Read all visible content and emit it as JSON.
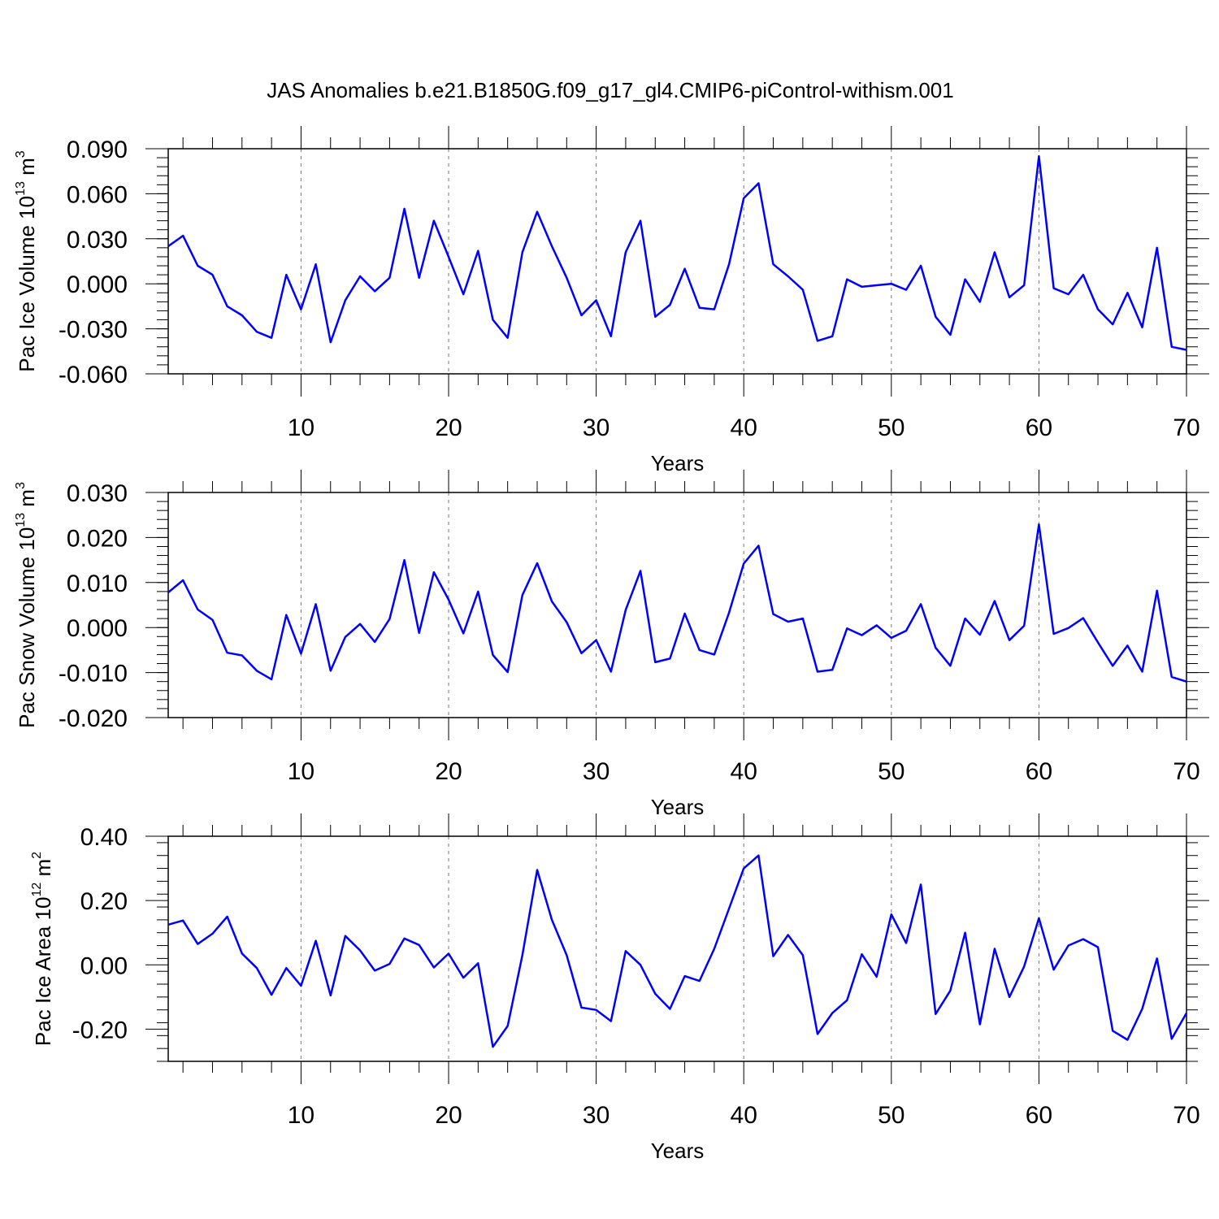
{
  "title": "JAS Anomalies b.e21.B1850G.f09_g17_gl4.CMIP6-piControl-withism.001",
  "line_color": "#0000ff",
  "chart_data": [
    {
      "type": "line",
      "ylabel": "Pac Ice Volume 10",
      "ylabel_exp": "13",
      "ylabel_unit": " m",
      "ylabel_unit_exp": "3",
      "xlabel": "Years",
      "xlim": [
        1,
        70
      ],
      "ylim": [
        -0.06,
        0.09
      ],
      "xticks": [
        10,
        20,
        30,
        40,
        50,
        60,
        70
      ],
      "xtick_labels": [
        "10",
        "20",
        "30",
        "40",
        "50",
        "60",
        "70"
      ],
      "yticks": [
        -0.06,
        -0.03,
        0.0,
        0.03,
        0.06,
        0.09
      ],
      "ytick_labels": [
        "-0.060",
        "-0.030",
        "0.000",
        "0.030",
        "0.060",
        "0.090"
      ],
      "grid": "vertical dashed at major x ticks",
      "series": [
        {
          "x": [
            1,
            2,
            3,
            4,
            5,
            6,
            7,
            8,
            9,
            10,
            11,
            12,
            13,
            14,
            15,
            16,
            17,
            18,
            19,
            20,
            21,
            22,
            23,
            24,
            25,
            26,
            27,
            28,
            29,
            30,
            31,
            32,
            33,
            34,
            35,
            36,
            37,
            38,
            39,
            40,
            41,
            42,
            43,
            44,
            45,
            46,
            47,
            48,
            49,
            50,
            51,
            52,
            53,
            54,
            55,
            56,
            57,
            58,
            59,
            60,
            61,
            62,
            63,
            64,
            65,
            66,
            67,
            68,
            69,
            70
          ],
          "y": [
            0.025,
            0.032,
            0.012,
            0.006,
            -0.015,
            -0.021,
            -0.032,
            -0.036,
            0.006,
            -0.017,
            0.013,
            -0.039,
            -0.011,
            0.005,
            -0.005,
            0.004,
            0.05,
            0.004,
            0.042,
            0.018,
            -0.007,
            0.022,
            -0.024,
            -0.036,
            0.021,
            0.048,
            0.025,
            0.004,
            -0.021,
            -0.011,
            -0.035,
            0.021,
            0.042,
            -0.022,
            -0.014,
            0.01,
            -0.016,
            -0.017,
            0.013,
            0.057,
            0.067,
            0.013,
            0.005,
            -0.004,
            -0.038,
            -0.035,
            0.003,
            -0.002,
            -0.001,
            0.0,
            -0.004,
            0.012,
            -0.022,
            -0.034,
            0.003,
            -0.012,
            0.021,
            -0.009,
            -0.001,
            0.085,
            -0.003,
            -0.007,
            0.006,
            -0.017,
            -0.027,
            -0.006,
            -0.029,
            0.024,
            -0.042,
            -0.044
          ]
        }
      ]
    },
    {
      "type": "line",
      "ylabel": "Pac Snow Volume 10",
      "ylabel_exp": "13",
      "ylabel_unit": " m",
      "ylabel_unit_exp": "3",
      "xlabel": "Years",
      "xlim": [
        1,
        70
      ],
      "ylim": [
        -0.02,
        0.03
      ],
      "xticks": [
        10,
        20,
        30,
        40,
        50,
        60,
        70
      ],
      "xtick_labels": [
        "10",
        "20",
        "30",
        "40",
        "50",
        "60",
        "70"
      ],
      "yticks": [
        -0.02,
        -0.01,
        0.0,
        0.01,
        0.02,
        0.03
      ],
      "ytick_labels": [
        "-0.020",
        "-0.010",
        "0.000",
        "0.010",
        "0.020",
        "0.030"
      ],
      "grid": "vertical dashed at major x ticks",
      "series": [
        {
          "x": [
            1,
            2,
            3,
            4,
            5,
            6,
            7,
            8,
            9,
            10,
            11,
            12,
            13,
            14,
            15,
            16,
            17,
            18,
            19,
            20,
            21,
            22,
            23,
            24,
            25,
            26,
            27,
            28,
            29,
            30,
            31,
            32,
            33,
            34,
            35,
            36,
            37,
            38,
            39,
            40,
            41,
            42,
            43,
            44,
            45,
            46,
            47,
            48,
            49,
            50,
            51,
            52,
            53,
            54,
            55,
            56,
            57,
            58,
            59,
            60,
            61,
            62,
            63,
            64,
            65,
            66,
            67,
            68,
            69,
            70
          ],
          "y": [
            0.0078,
            0.0105,
            0.004,
            0.0017,
            -0.0056,
            -0.0062,
            -0.0096,
            -0.0115,
            0.0028,
            -0.0058,
            0.0052,
            -0.0096,
            -0.0021,
            0.0008,
            -0.0032,
            0.0019,
            0.015,
            -0.0012,
            0.0123,
            0.0062,
            -0.0013,
            0.008,
            -0.0061,
            -0.0099,
            0.0072,
            0.0143,
            0.0058,
            0.0012,
            -0.0057,
            -0.0028,
            -0.0098,
            0.0039,
            0.0126,
            -0.0077,
            -0.0069,
            0.0031,
            -0.005,
            -0.006,
            0.0033,
            0.0142,
            0.0182,
            0.003,
            0.0013,
            0.002,
            -0.0098,
            -0.0094,
            -0.0002,
            -0.0017,
            0.0005,
            -0.0023,
            -0.0007,
            0.0052,
            -0.0045,
            -0.0085,
            0.002,
            -0.0016,
            0.0059,
            -0.0028,
            0.0004,
            0.0229,
            -0.0014,
            -0.0001,
            0.0021,
            -0.0033,
            -0.0085,
            -0.004,
            -0.0098,
            0.0082,
            -0.011,
            -0.012
          ]
        }
      ]
    },
    {
      "type": "line",
      "ylabel": "Pac Ice Area 10",
      "ylabel_exp": "12",
      "ylabel_unit": " m",
      "ylabel_unit_exp": "2",
      "xlabel": "Years",
      "xlim": [
        1,
        70
      ],
      "ylim": [
        -0.3,
        0.4
      ],
      "xticks": [
        10,
        20,
        30,
        40,
        50,
        60,
        70
      ],
      "xtick_labels": [
        "10",
        "20",
        "30",
        "40",
        "50",
        "60",
        "70"
      ],
      "yticks": [
        -0.2,
        0.0,
        0.2,
        0.4
      ],
      "ytick_labels": [
        "-0.20",
        "0.00",
        "0.20",
        "0.40"
      ],
      "grid": "vertical dashed at major x ticks",
      "series": [
        {
          "x": [
            1,
            2,
            3,
            4,
            5,
            6,
            7,
            8,
            9,
            10,
            11,
            12,
            13,
            14,
            15,
            16,
            17,
            18,
            19,
            20,
            21,
            22,
            23,
            24,
            25,
            26,
            27,
            28,
            29,
            30,
            31,
            32,
            33,
            34,
            35,
            36,
            37,
            38,
            39,
            40,
            41,
            42,
            43,
            44,
            45,
            46,
            47,
            48,
            49,
            50,
            51,
            52,
            53,
            54,
            55,
            56,
            57,
            58,
            59,
            60,
            61,
            62,
            63,
            64,
            65,
            66,
            67,
            68,
            69,
            70
          ],
          "y": [
            0.125,
            0.138,
            0.065,
            0.097,
            0.15,
            0.035,
            -0.01,
            -0.093,
            -0.01,
            -0.065,
            0.075,
            -0.095,
            0.09,
            0.045,
            -0.018,
            0.003,
            0.082,
            0.062,
            -0.008,
            0.035,
            -0.04,
            0.005,
            -0.255,
            -0.19,
            0.03,
            0.295,
            0.14,
            0.03,
            -0.133,
            -0.14,
            -0.175,
            0.043,
            0.0,
            -0.09,
            -0.137,
            -0.035,
            -0.05,
            0.05,
            0.175,
            0.3,
            0.34,
            0.027,
            0.093,
            0.03,
            -0.215,
            -0.15,
            -0.11,
            0.033,
            -0.037,
            0.157,
            0.068,
            0.25,
            -0.153,
            -0.08,
            0.1,
            -0.185,
            0.05,
            -0.1,
            -0.005,
            0.145,
            -0.015,
            0.06,
            0.08,
            0.055,
            -0.205,
            -0.233,
            -0.137,
            0.02,
            -0.23,
            -0.15
          ]
        }
      ]
    }
  ]
}
